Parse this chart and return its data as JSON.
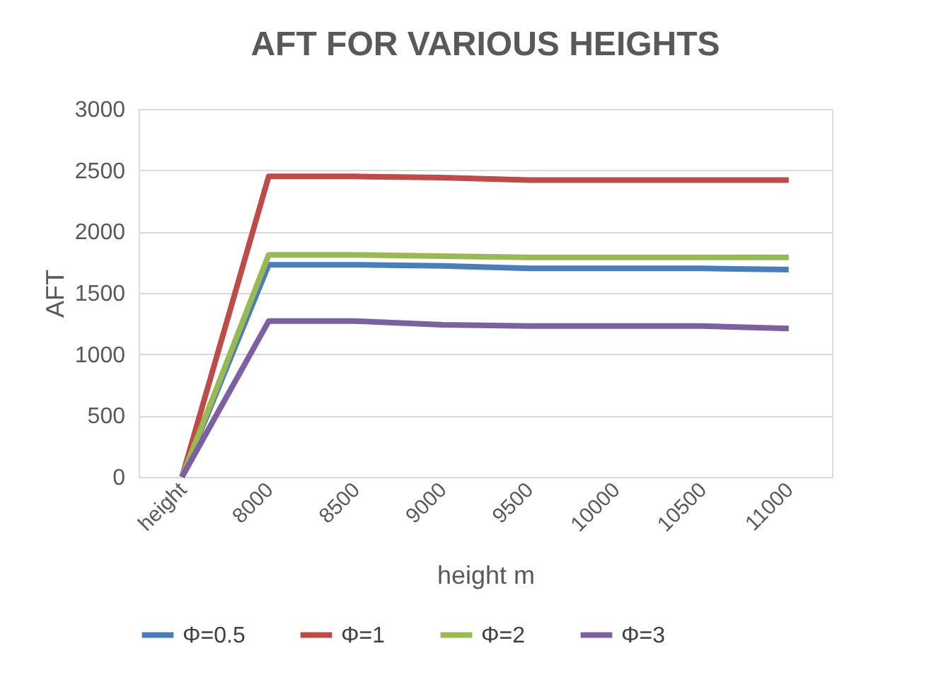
{
  "chart_data": {
    "type": "line",
    "title": "AFT FOR VARIOUS HEIGHTS",
    "xlabel": "height m",
    "ylabel": "AFT",
    "categories": [
      "height",
      "8000",
      "8500",
      "9000",
      "9500",
      "10000",
      "10500",
      "11000"
    ],
    "series": [
      {
        "name": "Φ=0.5",
        "color": "#4a7ebb",
        "values": [
          0,
          1730,
          1730,
          1720,
          1700,
          1700,
          1700,
          1690
        ]
      },
      {
        "name": "Φ=1",
        "color": "#be4b48",
        "values": [
          0,
          2450,
          2450,
          2440,
          2420,
          2420,
          2420,
          2420
        ]
      },
      {
        "name": "Φ=2",
        "color": "#98b954",
        "values": [
          0,
          1810,
          1810,
          1800,
          1790,
          1790,
          1790,
          1790
        ]
      },
      {
        "name": "Φ=3",
        "color": "#7d60a0",
        "values": [
          0,
          1270,
          1270,
          1240,
          1230,
          1230,
          1230,
          1210
        ]
      }
    ],
    "ylim": [
      0,
      3000
    ],
    "yticks": [
      0,
      500,
      1000,
      1500,
      2000,
      2500,
      3000
    ],
    "grid": "y",
    "legend": "bottom",
    "marker": "none",
    "line_style": "solid"
  }
}
